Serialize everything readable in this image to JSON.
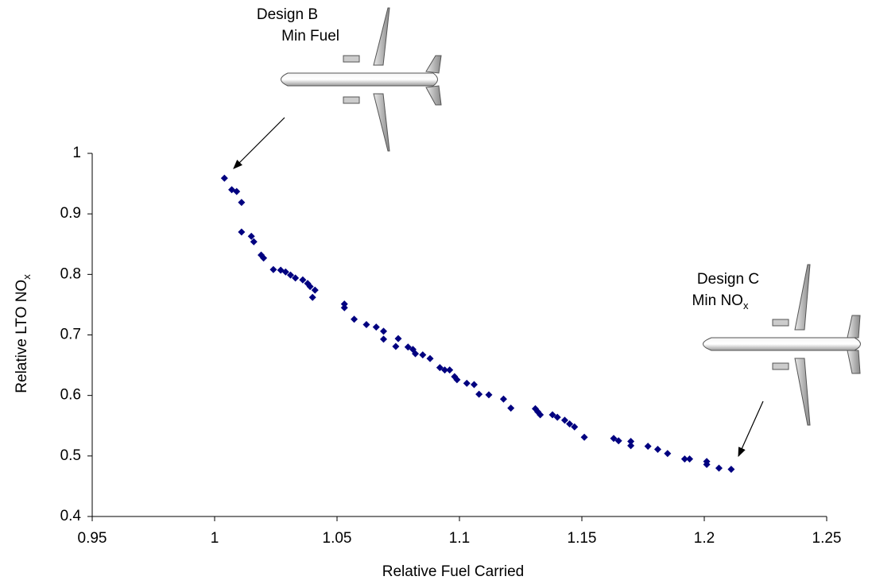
{
  "chart_data": {
    "type": "scatter",
    "xlabel": "Relative Fuel Carried",
    "ylabel": {
      "text": "Relative LTO NO",
      "subscript": "x"
    },
    "annotations": [
      {
        "lines": [
          "Design B",
          "Min Fuel"
        ]
      },
      {
        "lines": [
          "Design C",
          "Min NO"
        ],
        "subscript": "x"
      }
    ],
    "xlim": [
      0.95,
      1.25
    ],
    "xticks": [
      0.95,
      1,
      1.05,
      1.1,
      1.15,
      1.2,
      1.25
    ],
    "ylim": [
      0.4,
      1
    ],
    "yticks": [
      0.4,
      0.5,
      0.6,
      0.7,
      0.8,
      0.9,
      1
    ],
    "color": "#000080",
    "x": [
      1.004,
      1.007,
      1.009,
      1.011,
      1.011,
      1.015,
      1.016,
      1.019,
      1.02,
      1.024,
      1.027,
      1.029,
      1.031,
      1.033,
      1.036,
      1.038,
      1.039,
      1.041,
      1.04,
      1.053,
      1.053,
      1.057,
      1.062,
      1.066,
      1.069,
      1.069,
      1.075,
      1.074,
      1.079,
      1.081,
      1.082,
      1.085,
      1.088,
      1.092,
      1.094,
      1.096,
      1.098,
      1.099,
      1.103,
      1.106,
      1.108,
      1.112,
      1.118,
      1.121,
      1.131,
      1.132,
      1.133,
      1.138,
      1.14,
      1.143,
      1.145,
      1.147,
      1.151,
      1.163,
      1.165,
      1.17,
      1.17,
      1.177,
      1.181,
      1.185,
      1.192,
      1.194,
      1.201,
      1.201,
      1.206,
      1.211
    ],
    "y": [
      0.959,
      0.94,
      0.937,
      0.919,
      0.87,
      0.863,
      0.854,
      0.832,
      0.827,
      0.808,
      0.807,
      0.804,
      0.799,
      0.794,
      0.791,
      0.785,
      0.78,
      0.774,
      0.762,
      0.751,
      0.745,
      0.726,
      0.717,
      0.713,
      0.706,
      0.693,
      0.694,
      0.681,
      0.68,
      0.676,
      0.669,
      0.667,
      0.661,
      0.646,
      0.642,
      0.642,
      0.631,
      0.626,
      0.62,
      0.618,
      0.602,
      0.601,
      0.594,
      0.579,
      0.578,
      0.573,
      0.568,
      0.568,
      0.564,
      0.559,
      0.553,
      0.548,
      0.531,
      0.529,
      0.525,
      0.524,
      0.517,
      0.516,
      0.511,
      0.504,
      0.495,
      0.495,
      0.491,
      0.486,
      0.48,
      0.478
    ]
  }
}
